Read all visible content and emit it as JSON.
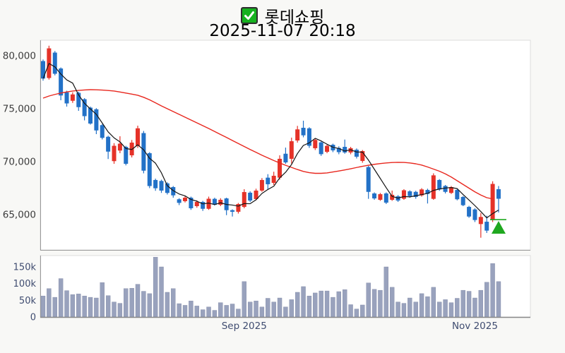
{
  "header": {
    "symbol_name": "롯데쇼핑",
    "checkbox_checked": true,
    "datetime": "2025-11-07 20:18"
  },
  "chart_data": {
    "type": "candlestick+volume",
    "title": "롯데쇼핑",
    "subtitle": "2025-11-07 20:18",
    "grid": false,
    "price_axis": {
      "range": [
        62500,
        81500
      ],
      "ticks": [
        {
          "value": 80000,
          "label": "80,000"
        },
        {
          "value": 75000,
          "label": "75,000"
        },
        {
          "value": 70000,
          "label": "70,000"
        },
        {
          "value": 65000,
          "label": "65,000"
        }
      ]
    },
    "volume_axis": {
      "range_k": [
        0,
        185
      ],
      "ticks": [
        {
          "value": 150,
          "label": "150k"
        },
        {
          "value": 100,
          "label": "100k"
        },
        {
          "value": 50,
          "label": "50k"
        },
        {
          "value": 0,
          "label": "0"
        }
      ]
    },
    "x_axis": {
      "ticks": [
        {
          "index": 34,
          "label": "Sep 2025"
        },
        {
          "index": 73,
          "label": "Nov 2025"
        }
      ]
    },
    "candles_format": [
      "open",
      "high",
      "low",
      "close",
      "volume_k"
    ],
    "candles": [
      [
        79500,
        79650,
        77650,
        77850,
        63
      ],
      [
        77900,
        80950,
        77750,
        80700,
        85
      ],
      [
        80300,
        80450,
        78150,
        78300,
        59
      ],
      [
        78800,
        78900,
        75800,
        76250,
        115
      ],
      [
        76550,
        76700,
        75200,
        75500,
        79
      ],
      [
        75750,
        76550,
        75550,
        76350,
        67
      ],
      [
        76500,
        76600,
        74800,
        75150,
        69
      ],
      [
        75900,
        76000,
        73900,
        74300,
        63
      ],
      [
        75100,
        75200,
        73500,
        73600,
        59
      ],
      [
        74950,
        75050,
        72600,
        72950,
        57
      ],
      [
        73450,
        73550,
        72100,
        72250,
        103
      ],
      [
        72350,
        72450,
        70250,
        70950,
        64
      ],
      [
        70050,
        71750,
        69800,
        71500,
        45
      ],
      [
        71050,
        72400,
        70800,
        71700,
        41
      ],
      [
        71400,
        71500,
        69650,
        69800,
        85
      ],
      [
        70600,
        72050,
        70400,
        71800,
        86
      ],
      [
        71500,
        73400,
        71300,
        73150,
        98
      ],
      [
        72700,
        72900,
        68900,
        69150,
        77
      ],
      [
        70800,
        70900,
        67500,
        67700,
        70
      ],
      [
        68270,
        68400,
        67250,
        67490,
        179
      ],
      [
        68180,
        68300,
        67050,
        67270,
        150
      ],
      [
        67950,
        68050,
        66900,
        67050,
        74
      ],
      [
        67600,
        67700,
        66600,
        66820,
        85
      ],
      [
        66450,
        66550,
        65900,
        66110,
        40
      ],
      [
        66270,
        66730,
        66150,
        66600,
        35
      ],
      [
        66600,
        66700,
        65450,
        65600,
        48
      ],
      [
        65800,
        66350,
        65650,
        66200,
        33
      ],
      [
        66200,
        66300,
        65350,
        65550,
        22
      ],
      [
        65550,
        66700,
        65450,
        66500,
        30
      ],
      [
        66490,
        66600,
        65850,
        65930,
        20
      ],
      [
        65930,
        66550,
        65800,
        66400,
        43
      ],
      [
        66530,
        66600,
        64950,
        65420,
        35
      ],
      [
        65420,
        65500,
        64820,
        65270,
        39
      ],
      [
        65270,
        66100,
        65100,
        66000,
        24
      ],
      [
        65730,
        67400,
        65600,
        67130,
        106
      ],
      [
        67070,
        67200,
        66200,
        66330,
        45
      ],
      [
        66470,
        67450,
        66350,
        67270,
        48
      ],
      [
        67270,
        68450,
        67150,
        68270,
        30
      ],
      [
        68490,
        68820,
        67380,
        67870,
        56
      ],
      [
        68000,
        69050,
        67800,
        68670,
        45
      ],
      [
        68490,
        70600,
        68300,
        70270,
        57
      ],
      [
        70750,
        71330,
        69800,
        69930,
        30
      ],
      [
        70270,
        72270,
        69820,
        71930,
        52
      ],
      [
        72000,
        73380,
        71800,
        73050,
        74
      ],
      [
        73200,
        73870,
        72300,
        72490,
        91
      ],
      [
        73150,
        73250,
        71300,
        71500,
        63
      ],
      [
        71270,
        72150,
        71100,
        72050,
        72
      ],
      [
        71820,
        71900,
        70550,
        70710,
        78
      ],
      [
        70930,
        71600,
        70800,
        71490,
        78
      ],
      [
        71600,
        71700,
        70900,
        71070,
        59
      ],
      [
        71300,
        71450,
        70700,
        70900,
        76
      ],
      [
        71400,
        72090,
        70750,
        70870,
        82
      ],
      [
        70870,
        71400,
        70700,
        71270,
        37
      ],
      [
        71130,
        71250,
        70300,
        70470,
        24
      ],
      [
        70070,
        71100,
        69900,
        71000,
        36
      ],
      [
        69490,
        69600,
        66490,
        67150,
        102
      ],
      [
        67000,
        67100,
        66400,
        66530,
        83
      ],
      [
        66400,
        67050,
        66300,
        66930,
        80
      ],
      [
        67000,
        67100,
        66000,
        66130,
        150
      ],
      [
        66400,
        67270,
        66300,
        66870,
        89
      ],
      [
        66730,
        66850,
        66200,
        66330,
        45
      ],
      [
        66500,
        67400,
        66400,
        67300,
        41
      ],
      [
        67200,
        67300,
        66600,
        66750,
        57
      ],
      [
        67150,
        67250,
        66500,
        66670,
        45
      ],
      [
        66820,
        67500,
        66700,
        67380,
        70
      ],
      [
        67330,
        67450,
        66050,
        66950,
        61
      ],
      [
        66490,
        68900,
        66400,
        68710,
        89
      ],
      [
        68270,
        68350,
        67250,
        67380,
        45
      ],
      [
        67710,
        67800,
        67000,
        67150,
        52
      ],
      [
        67050,
        67700,
        66950,
        67600,
        43
      ],
      [
        67330,
        67430,
        66350,
        66450,
        56
      ],
      [
        66670,
        66750,
        65800,
        65890,
        80
      ],
      [
        65730,
        65830,
        64700,
        64820,
        77
      ],
      [
        65490,
        65600,
        64300,
        64490,
        57
      ],
      [
        64110,
        65150,
        62820,
        64780,
        80
      ],
      [
        64330,
        64900,
        63270,
        63490,
        104
      ],
      [
        64490,
        68150,
        64300,
        67900,
        160
      ],
      [
        67400,
        67700,
        65200,
        66500,
        106
      ]
    ],
    "ma_short": {
      "period": 5,
      "color": "#141414",
      "note": "black line, 5-period MA of close"
    },
    "ma_long": {
      "color": "#e8271e",
      "values": [
        76000,
        76200,
        76350,
        76480,
        76590,
        76670,
        76730,
        76770,
        76800,
        76790,
        76760,
        76720,
        76670,
        76580,
        76480,
        76380,
        76270,
        76080,
        75840,
        75560,
        75270,
        75000,
        74730,
        74470,
        74200,
        73930,
        73670,
        73400,
        73130,
        72850,
        72570,
        72290,
        72000,
        71720,
        71430,
        71150,
        70880,
        70610,
        70360,
        70110,
        69880,
        69660,
        69460,
        69260,
        69080,
        68960,
        68900,
        68900,
        68940,
        69030,
        69120,
        69220,
        69330,
        69450,
        69560,
        69660,
        69750,
        69820,
        69880,
        69920,
        69940,
        69930,
        69880,
        69800,
        69680,
        69500,
        69300,
        69100,
        68850,
        68550,
        68200,
        67850,
        67500,
        67150,
        66850,
        66600,
        66490,
        null
      ]
    },
    "marker": {
      "type": "buy-triangle-up",
      "index": 77,
      "line_price": 64530,
      "apex_price": 64400,
      "base_price": 63200,
      "color": "#1fa81f"
    },
    "colors": {
      "up_candle": "#e53228",
      "down_candle": "#2271c7",
      "volume_bar": "#99a2bd",
      "checkbox_green": "#16b21f",
      "panel_border": "#dcdcdc",
      "axis_line": "#999999"
    }
  }
}
